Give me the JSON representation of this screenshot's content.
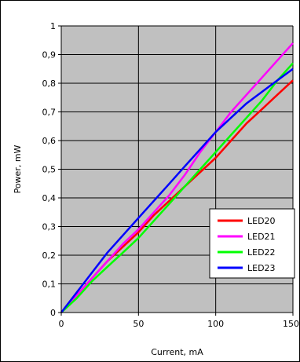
{
  "chart_data": {
    "type": "line",
    "xlabel": "Current, mA",
    "ylabel": "Power, mW",
    "xlim": [
      0,
      150
    ],
    "ylim": [
      0,
      1
    ],
    "x_ticks": [
      0,
      50,
      100,
      150
    ],
    "x_tick_labels": [
      "0",
      "50",
      "100",
      "150"
    ],
    "y_ticks": [
      0,
      0.1,
      0.2,
      0.3,
      0.4,
      0.5,
      0.6,
      0.7,
      0.8,
      0.9,
      1
    ],
    "y_tick_labels": [
      "0",
      "0,1",
      "0,2",
      "0,3",
      "0,4",
      "0,5",
      "0,6",
      "0,7",
      "0,8",
      "0,9",
      "1"
    ],
    "grid": true,
    "plot_background": "#c0c0c0",
    "legend_position": "lower-right",
    "series": [
      {
        "name": "LED20",
        "color": "#ff0000",
        "x": [
          0,
          10,
          20,
          30,
          40,
          50,
          60,
          70,
          80,
          90,
          100,
          110,
          120,
          130,
          140,
          150
        ],
        "y": [
          0,
          0.06,
          0.12,
          0.18,
          0.23,
          0.28,
          0.34,
          0.39,
          0.44,
          0.49,
          0.54,
          0.6,
          0.66,
          0.71,
          0.76,
          0.81
        ]
      },
      {
        "name": "LED21",
        "color": "#ff00ff",
        "x": [
          0,
          10,
          20,
          30,
          40,
          50,
          60,
          70,
          80,
          90,
          100,
          110,
          120,
          130,
          140,
          150
        ],
        "y": [
          0,
          0.06,
          0.12,
          0.18,
          0.24,
          0.29,
          0.35,
          0.41,
          0.48,
          0.56,
          0.63,
          0.7,
          0.76,
          0.82,
          0.88,
          0.94
        ]
      },
      {
        "name": "LED22",
        "color": "#00ff00",
        "x": [
          0,
          10,
          20,
          30,
          40,
          50,
          60,
          70,
          80,
          90,
          100,
          110,
          120,
          130,
          140,
          150
        ],
        "y": [
          0,
          0.05,
          0.11,
          0.16,
          0.21,
          0.26,
          0.32,
          0.38,
          0.44,
          0.5,
          0.56,
          0.62,
          0.68,
          0.74,
          0.81,
          0.87
        ]
      },
      {
        "name": "LED23",
        "color": "#0000ff",
        "x": [
          0,
          10,
          20,
          30,
          40,
          50,
          60,
          70,
          80,
          90,
          100,
          110,
          120,
          130,
          140,
          150
        ],
        "y": [
          0,
          0.07,
          0.14,
          0.21,
          0.27,
          0.33,
          0.39,
          0.45,
          0.51,
          0.57,
          0.63,
          0.68,
          0.73,
          0.77,
          0.81,
          0.85
        ]
      }
    ]
  }
}
